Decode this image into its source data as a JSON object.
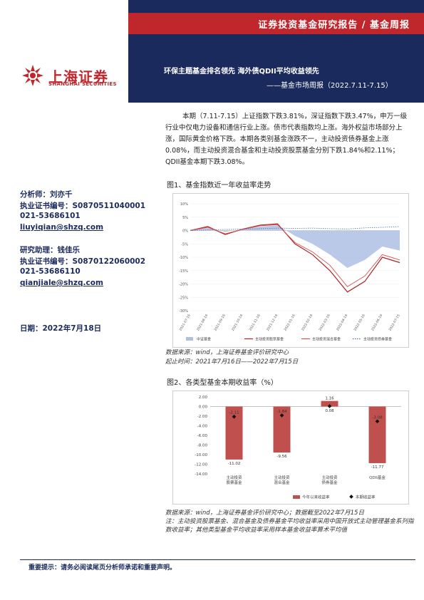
{
  "header": {
    "category": "证券投资基金研究报告 / 基金周报",
    "title": "环保主题基金排名领先  海外债QDII平均收益领先",
    "subtitle": "——基金市场周报（2022.7.11-7.15）"
  },
  "logo": {
    "cn": "上海证券",
    "en": "SHANGHAI SECURITIES"
  },
  "summary": "本期（7.11-7.15）上证指数下跌3.81%，深证指数下跌3.47%，申万一级行业中仅电力设备和通信行业上涨。债市代表指数均上涨。海外权益市场部分上涨，国际黄金价格下跌。本期各类别基金涨跌不一，主动投资债券基金上涨0.08%，而主动投资混合基金和主动投资股票基金分别下跌1.84%和2.11%；QDII基金本期下跌3.08%。",
  "authors": {
    "analyst": "分析师：刘亦千",
    "analyst_cert": "执业证书编号：S0870511040001",
    "analyst_phone": "021-53686101",
    "analyst_email": "liuyiqian@shzq.com",
    "assistant": "研究助理：钱佳乐",
    "assistant_cert": "执业证书编号：S0870122060002",
    "assistant_phone": "021-53686110",
    "assistant_email": "qianjiale@shzq.com",
    "date": "日期：2022年7月18日"
  },
  "figure1": {
    "title": "图1、基金指数近一年收益率走势",
    "source": "数据来源：wind，上海证券基金评价研究中心",
    "period": "起止时间：2021年7月16日——2022年7月15日"
  },
  "figure2": {
    "title": "图2、各类型基金本期收益率（%）",
    "source": "数据来源：wind，上海证券基金评价研究中心；数据截至2022年7月15日",
    "note": "注：主动投资股票基金、混合基金及债券基金平均收益率采用中国开放式主动管理基金系列指数收益率；其他类型基金平均收益率采用样本基金收益率算术平均值"
  },
  "footer": "重要提示：请务必阅读尾页分析师承诺和重要声明。",
  "colors": {
    "navy": "#1a2a5c",
    "red": "#c0272d",
    "bar": "#c0504d",
    "area": "#aebfe3"
  },
  "chart_data": [
    {
      "type": "line",
      "title": "图1、基金指数近一年收益率走势",
      "ylim": [
        -0.3,
        0.1
      ],
      "yticks": [
        "10%",
        "5%",
        "0%",
        "-5%",
        "-10%",
        "-15%",
        "-20%",
        "-25%",
        "-30%"
      ],
      "x": [
        "2021-07-16",
        "2021-08-16",
        "2021-09-16",
        "2021-10-16",
        "2021-11-16",
        "2021-12-16",
        "2022-01-16",
        "2022-02-16",
        "2022-03-16",
        "2022-04-16",
        "2022-05-16",
        "2022-06-16",
        "2022-07-15"
      ],
      "series": [
        {
          "name": "中证基金",
          "style": "area",
          "values": [
            0.0,
            0.01,
            -0.005,
            0.005,
            0.015,
            0.02,
            -0.02,
            -0.05,
            -0.09,
            -0.14,
            -0.11,
            -0.06,
            -0.075
          ]
        },
        {
          "name": "主动投资股票基金",
          "style": "line",
          "values": [
            0.0,
            0.015,
            -0.015,
            0.005,
            0.02,
            0.025,
            -0.05,
            -0.09,
            -0.15,
            -0.23,
            -0.19,
            -0.1,
            -0.12
          ]
        },
        {
          "name": "主动投资混合基金",
          "style": "line",
          "values": [
            0.0,
            0.012,
            -0.012,
            0.004,
            0.018,
            0.022,
            -0.045,
            -0.08,
            -0.13,
            -0.21,
            -0.17,
            -0.09,
            -0.11
          ]
        },
        {
          "name": "主动投资债券基金",
          "style": "dotted",
          "values": [
            0.0,
            0.002,
            0.004,
            0.005,
            0.007,
            0.009,
            0.008,
            0.009,
            0.007,
            0.006,
            0.01,
            0.012,
            0.015
          ]
        }
      ],
      "legend_labels": [
        "中证基金",
        "主动投资股票基金",
        "主动投资混合基金",
        "主动投资债券基金"
      ],
      "legend": "bottom"
    },
    {
      "type": "bar",
      "title": "图2、各类型基金本期收益率（%）",
      "categories": [
        "主动投资股票基金",
        "主动投资混合基金",
        "主动投资债券基金",
        "QDII基金"
      ],
      "category_labels": [
        "主动投资\n股票基金",
        "主动投资\n混合基金",
        "主动投资\n债券基金",
        "QDII基金"
      ],
      "ylim": [
        -14,
        2
      ],
      "yticks": [
        "2.00",
        "0.00",
        "-2.00",
        "-4.00",
        "-6.00",
        "-8.00",
        "-10.00",
        "-12.00",
        "-14.00"
      ],
      "series": [
        {
          "name": "今年以来收益率",
          "type": "bar",
          "values": [
            -11.02,
            -9.56,
            1.16,
            -11.77
          ],
          "labels": [
            "-11.02",
            "-9.56",
            "1.16",
            "-11.77"
          ]
        },
        {
          "name": "本期收益率",
          "type": "marker",
          "values": [
            -2.11,
            -1.84,
            0.08,
            -3.08
          ],
          "labels": [
            "-2.11",
            "-1.84",
            "0.08",
            "-3.08"
          ]
        }
      ],
      "legend": "bottom-right"
    }
  ]
}
